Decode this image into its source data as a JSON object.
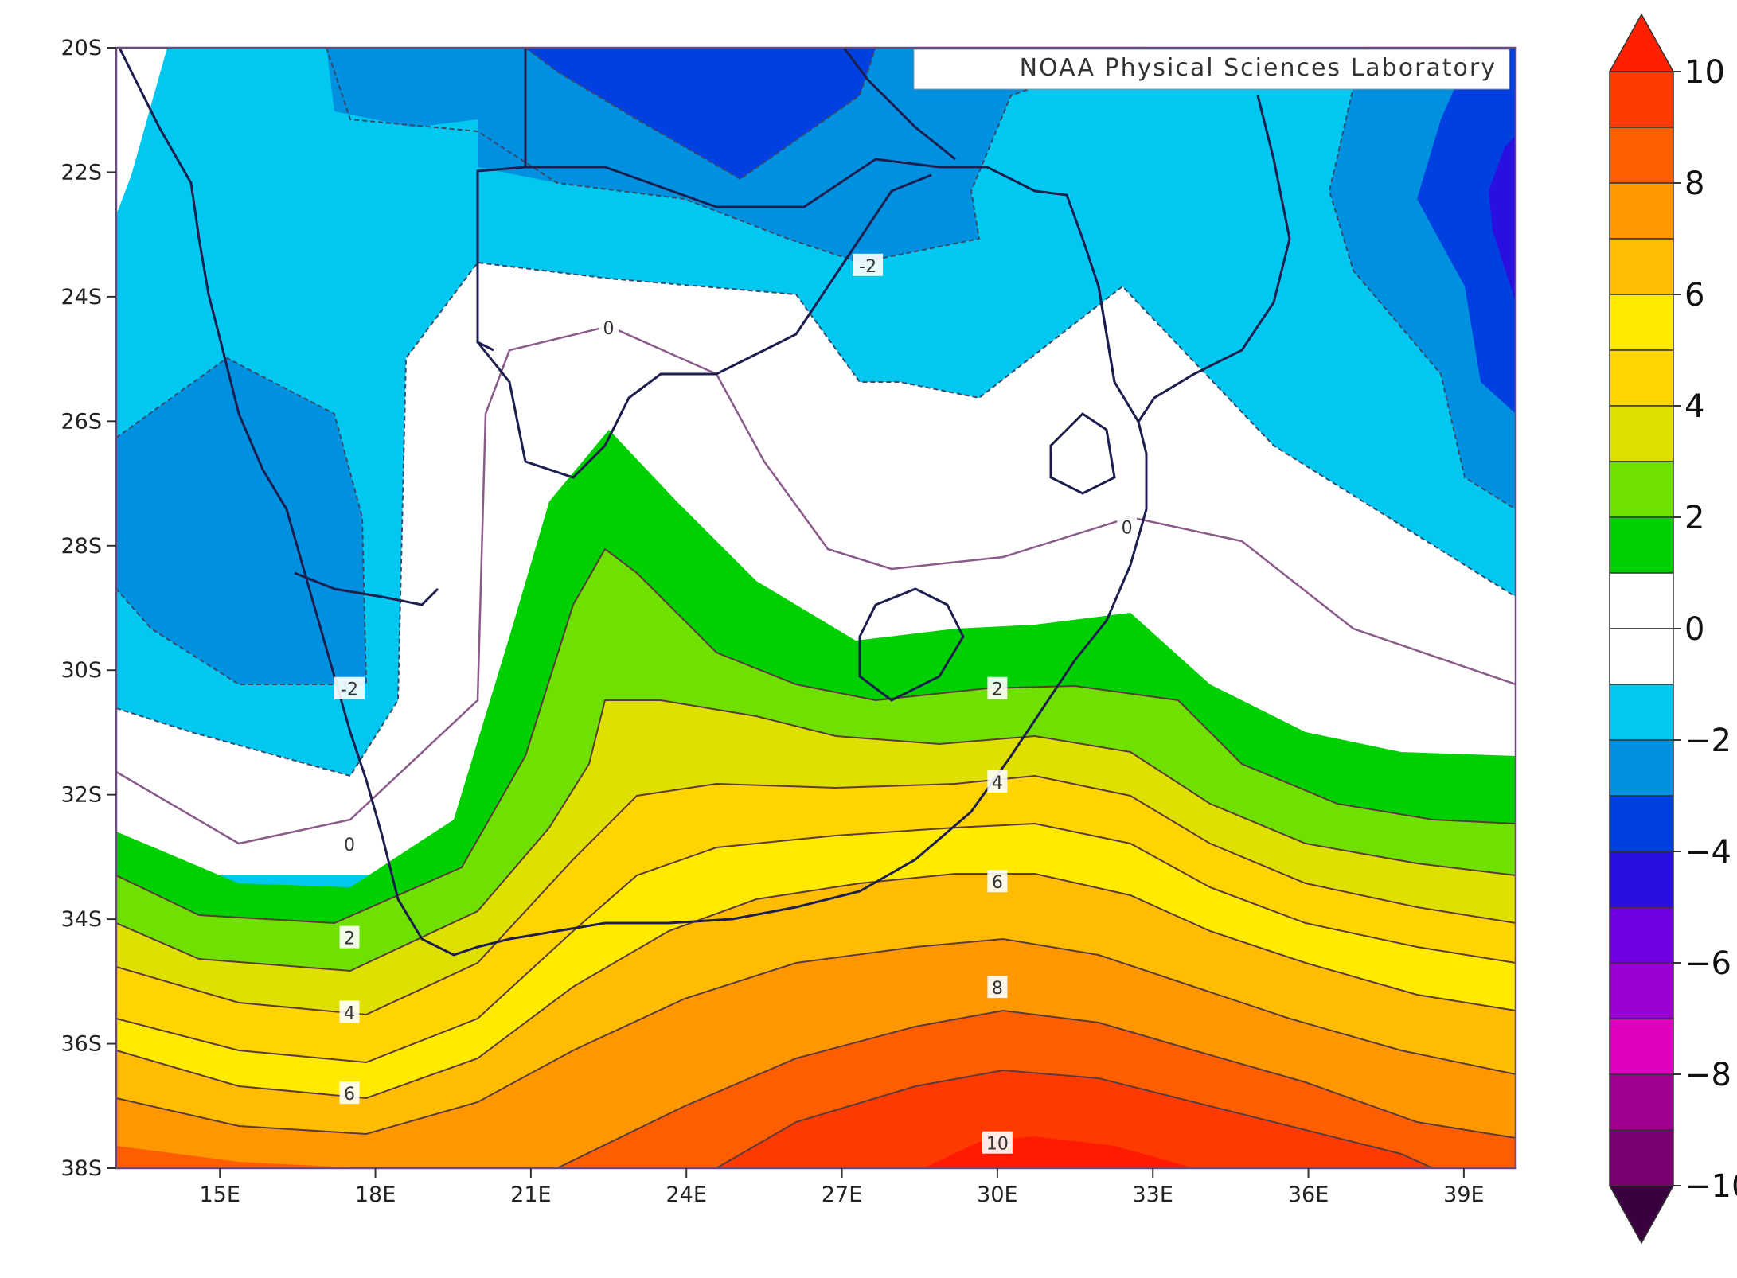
{
  "map": {
    "credit": "NOAA Physical Sciences Laboratory",
    "lon_labels": [
      "15E",
      "18E",
      "21E",
      "24E",
      "27E",
      "30E",
      "33E",
      "36E",
      "39E"
    ],
    "lat_labels": [
      "20S",
      "22S",
      "24S",
      "26S",
      "28S",
      "30S",
      "32S",
      "34S",
      "36S",
      "38S"
    ],
    "lon_range": [
      13,
      40
    ],
    "lat_range": [
      -20,
      -38
    ],
    "contour_labels": [
      {
        "text": "-2",
        "lon": 27.5,
        "lat": -23.5
      },
      {
        "text": "0",
        "lon": 22.5,
        "lat": -24.5
      },
      {
        "text": "0",
        "lon": 32.5,
        "lat": -27.7
      },
      {
        "text": "-2",
        "lon": 17.5,
        "lat": -30.3
      },
      {
        "text": "0",
        "lon": 17.5,
        "lat": -32.8
      },
      {
        "text": "2",
        "lon": 17.5,
        "lat": -34.3
      },
      {
        "text": "4",
        "lon": 17.5,
        "lat": -35.5
      },
      {
        "text": "6",
        "lon": 17.5,
        "lat": -36.8
      },
      {
        "text": "2",
        "lon": 30.0,
        "lat": -30.3
      },
      {
        "text": "4",
        "lon": 30.0,
        "lat": -31.8
      },
      {
        "text": "6",
        "lon": 30.0,
        "lat": -33.4
      },
      {
        "text": "8",
        "lon": 30.0,
        "lat": -35.1
      },
      {
        "text": "10",
        "lon": 30.0,
        "lat": -37.6
      }
    ]
  },
  "colorbar": {
    "ticks": [
      "10",
      "8",
      "6",
      "4",
      "2",
      "0",
      "−2",
      "−4",
      "−6",
      "−8",
      "−10"
    ],
    "top_arrow_color": "#ff2000",
    "bottom_arrow_color": "#3a0040",
    "bands": [
      "#ff3a00",
      "#ff5e00",
      "#ff9800",
      "#ffbc00",
      "#ffea00",
      "#ffd400",
      "#e0e000",
      "#6fe000",
      "#00d000",
      "#ffffff",
      "#ffffff",
      "#00c8f0",
      "#0090e0",
      "#0040e0",
      "#2a10e0",
      "#7000e0",
      "#9a00d0",
      "#e000c0",
      "#a0008f",
      "#780070"
    ]
  },
  "colors": {
    "field": {
      "blue_light": "#00c8f0",
      "blue_mid": "#0090e0",
      "blue_dark": "#0040e0",
      "blue_violet": "#2a10e0",
      "white": "#ffffff",
      "green": "#00d000",
      "green_light": "#6fe000",
      "olive": "#e0e000",
      "yellow_gold": "#ffd400",
      "yellow": "#ffea00",
      "amber": "#ffbc00",
      "orange_light": "#ff9800",
      "orange": "#ff5e00",
      "red_orange": "#ff3a00",
      "red": "#ff1a00"
    }
  }
}
